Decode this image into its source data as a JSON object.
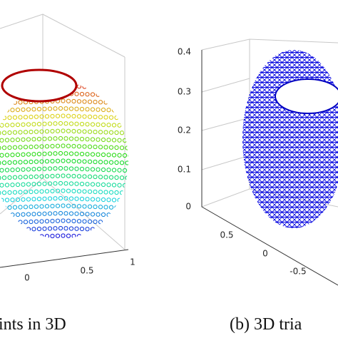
{
  "panels": [
    {
      "ticks": [
        "0",
        "0.5",
        "1"
      ],
      "caption": "ints in 3D"
    },
    {
      "z_ticks": [
        "0.4",
        "0.3",
        "0.2",
        "0.1",
        "0"
      ],
      "y_ticks": [
        "0.5",
        "0",
        "-0.5"
      ],
      "caption": "(b) 3D tria"
    }
  ]
}
